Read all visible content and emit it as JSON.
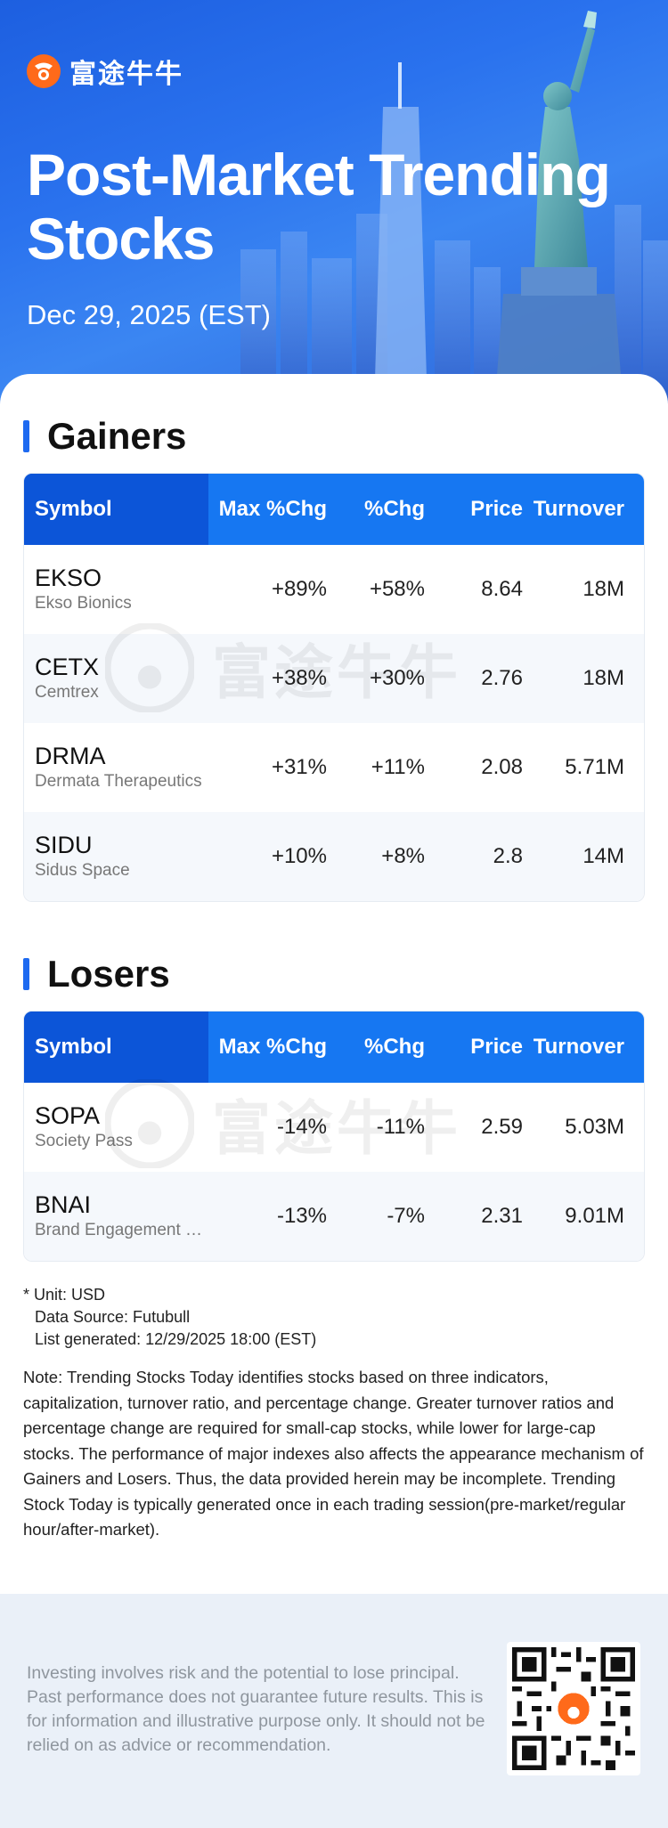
{
  "brand": {
    "name": "富途牛牛",
    "logo_icon": "futubull-logo-icon"
  },
  "hero": {
    "title": "Post-Market Trending Stocks",
    "date": "Dec 29, 2025 (EST)"
  },
  "gainers": {
    "title": "Gainers",
    "headers": {
      "symbol": "Symbol",
      "max_chg": "Max %Chg",
      "chg": "%Chg",
      "price": "Price",
      "turnover": "Turnover"
    },
    "rows": [
      {
        "symbol": "EKSO",
        "name": "Ekso Bionics",
        "max_chg": "+89%",
        "chg": "+58%",
        "price": "8.64",
        "turnover": "18M"
      },
      {
        "symbol": "CETX",
        "name": "Cemtrex",
        "max_chg": "+38%",
        "chg": "+30%",
        "price": "2.76",
        "turnover": "18M"
      },
      {
        "symbol": "DRMA",
        "name": "Dermata Therapeutics",
        "max_chg": "+31%",
        "chg": "+11%",
        "price": "2.08",
        "turnover": "5.71M"
      },
      {
        "symbol": "SIDU",
        "name": "Sidus Space",
        "max_chg": "+10%",
        "chg": "+8%",
        "price": "2.8",
        "turnover": "14M"
      }
    ]
  },
  "losers": {
    "title": "Losers",
    "headers": {
      "symbol": "Symbol",
      "max_chg": "Max %Chg",
      "chg": "%Chg",
      "price": "Price",
      "turnover": "Turnover"
    },
    "rows": [
      {
        "symbol": "SOPA",
        "name": "Society Pass",
        "max_chg": "-14%",
        "chg": "-11%",
        "price": "2.59",
        "turnover": "5.03M"
      },
      {
        "symbol": "BNAI",
        "name": "Brand Engagement Network",
        "max_chg": "-13%",
        "chg": "-7%",
        "price": "2.31",
        "turnover": "9.01M"
      }
    ]
  },
  "notes": {
    "unit": "* Unit: USD",
    "source": "Data Source: Futubull",
    "generated": "List generated: 12/29/2025 18:00 (EST)",
    "note": "Note: Trending Stocks Today identifies stocks based on three indicators, capitalization, turnover ratio, and percentage change. Greater turnover ratios and percentage change are required for small-cap stocks, while lower for large-cap stocks. The performance of major indexes also affects the appearance mechanism of Gainers and Losers. Thus, the data provided herein may be incomplete. Trending Stock Today is typically generated once in each trading session(pre-market/regular hour/after-market)."
  },
  "footer": {
    "disclaimer": "Investing involves risk and the potential to lose principal. Past performance does not guarantee future results. This is for information and illustrative purpose only. It should not be relied on as advice or recommendation.",
    "qr_icon": "qr-code-icon"
  },
  "colors": {
    "primary": "#1677f2",
    "primary_dark": "#0c55d8",
    "brand_orange": "#ff6a1a",
    "footer_bg": "#eaf0f8"
  }
}
